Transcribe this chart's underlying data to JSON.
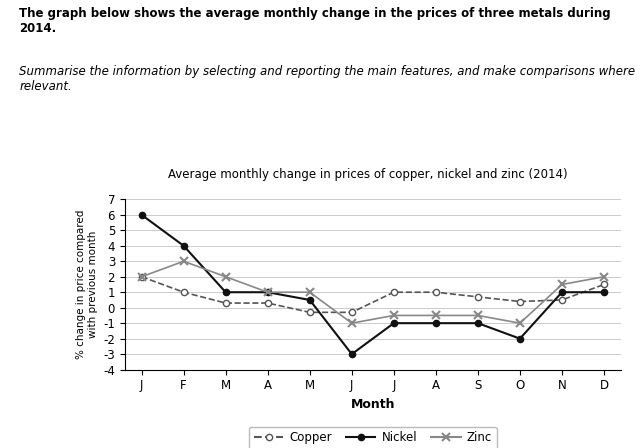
{
  "title": "Average monthly change in prices of copper, nickel and zinc (2014)",
  "ylabel": "% change in price compared\nwith previous month",
  "xlabel": "Month",
  "months": [
    "J",
    "F",
    "M",
    "A",
    "M",
    "J",
    "J",
    "A",
    "S",
    "O",
    "N",
    "D"
  ],
  "copper": [
    2.0,
    1.0,
    0.3,
    0.3,
    -0.3,
    -0.3,
    1.0,
    1.0,
    0.7,
    0.4,
    0.5,
    1.5
  ],
  "nickel": [
    6.0,
    4.0,
    1.0,
    1.0,
    0.5,
    -3.0,
    -1.0,
    -1.0,
    -1.0,
    -2.0,
    1.0,
    1.0
  ],
  "zinc": [
    2.0,
    3.0,
    2.0,
    1.0,
    1.0,
    -1.0,
    -0.5,
    -0.5,
    -0.5,
    -1.0,
    1.5,
    2.0
  ],
  "ylim": [
    -4,
    7
  ],
  "yticks": [
    -4,
    -3,
    -2,
    -1,
    0,
    1,
    2,
    3,
    4,
    5,
    6,
    7
  ],
  "header_bold1": "The graph below shows the average monthly change in the prices of three metals during 2014.",
  "header_italic": "Summarise the information by selecting and reporting the main features, and make comparisons where relevant.",
  "copper_color": "#555555",
  "nickel_color": "#111111",
  "zinc_color": "#888888",
  "background_color": "#ffffff"
}
